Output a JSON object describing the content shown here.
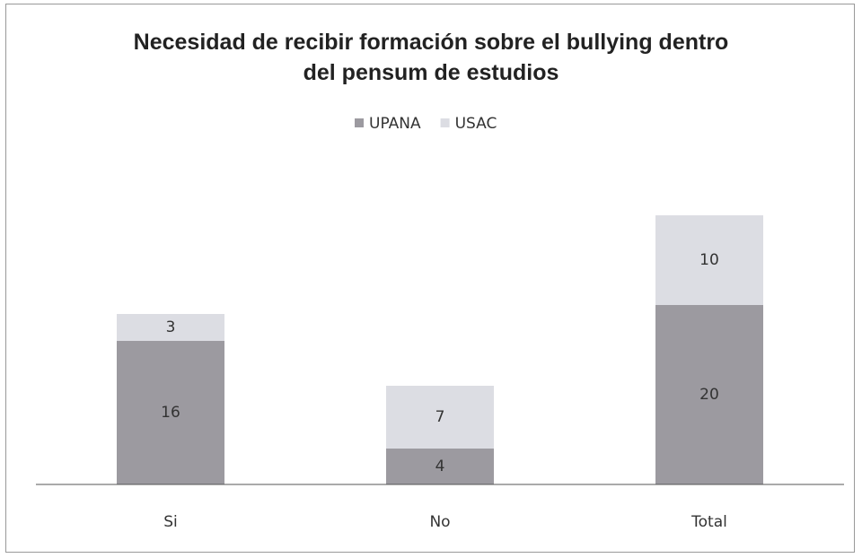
{
  "chart_data": {
    "type": "bar",
    "stacked": true,
    "title": "Necesidad de recibir formación sobre el bullying dentro del pensum de estudios",
    "categories": [
      "Si",
      "No",
      "Total"
    ],
    "series": [
      {
        "name": "UPANA",
        "color": "#9c9aa0",
        "values": [
          16,
          4,
          20
        ]
      },
      {
        "name": "USAC",
        "color": "#dcdde3",
        "values": [
          3,
          7,
          10
        ]
      }
    ],
    "legend": "top"
  }
}
